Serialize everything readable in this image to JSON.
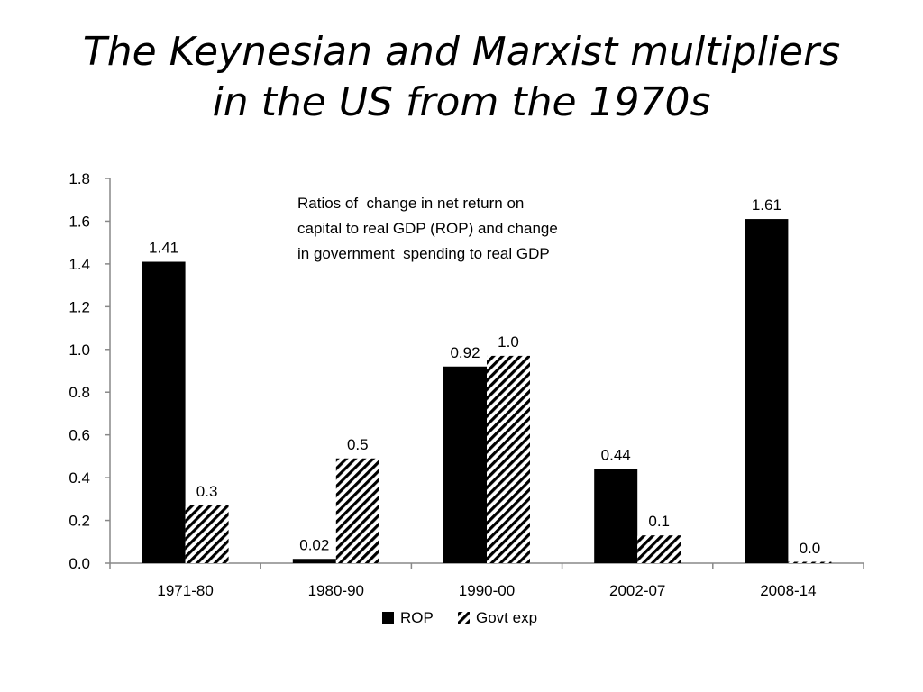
{
  "slide": {
    "title_line1": "The Keynesian and Marxist multipliers",
    "title_line2": "in the US from the 1970s"
  },
  "chart_data": {
    "type": "bar",
    "categories": [
      "1971-80",
      "1980-90",
      "1990-00",
      "2002-07",
      "2008-14"
    ],
    "series": [
      {
        "name": "ROP",
        "values": [
          1.41,
          0.02,
          0.92,
          0.44,
          1.61
        ],
        "labels": [
          "1.41",
          "0.02",
          "0.92",
          "0.44",
          "1.61"
        ],
        "fill": "solid",
        "color": "#000000"
      },
      {
        "name": "Govt exp",
        "values": [
          0.27,
          0.49,
          0.97,
          0.13,
          0.005
        ],
        "labels": [
          "0.3",
          "0.5",
          "1.0",
          "0.1",
          "0.0"
        ],
        "fill": "hatched",
        "color": "#000000"
      }
    ],
    "y_ticks": [
      "0.0",
      "0.2",
      "0.4",
      "0.6",
      "0.8",
      "1.0",
      "1.2",
      "1.4",
      "1.6",
      "1.8"
    ],
    "ylim": [
      0,
      1.8
    ],
    "annotation": [
      "Ratios of  change in net return on",
      "capital to real GDP (ROP) and change",
      "in government  spending to real GDP"
    ],
    "legend_position": "bottom",
    "grid": false
  }
}
